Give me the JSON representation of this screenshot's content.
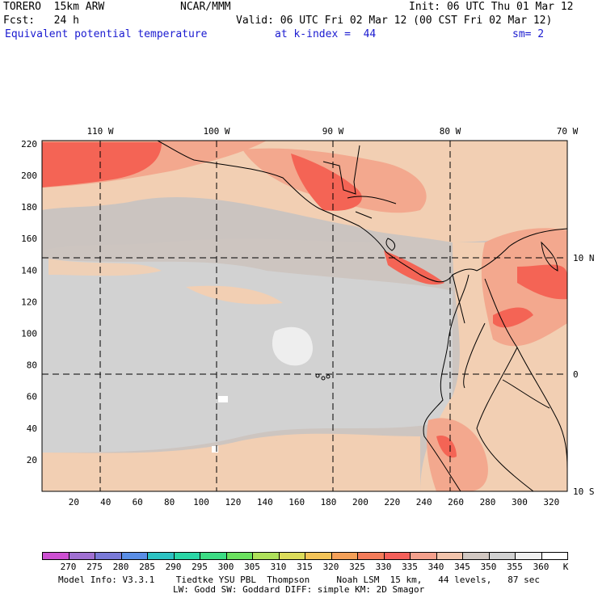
{
  "header": {
    "model": "TORERO  15km ARW",
    "center": "NCAR/MMM",
    "init": "Init: 06 UTC Thu 01 Mar 12",
    "fcst": "Fcst:   24 h",
    "valid": "Valid: 06 UTC Fri 02 Mar 12 (00 CST Fri 02 Mar 12)",
    "field": "Equivalent potential temperature",
    "level": "at k-index =  44",
    "smooth": "sm= 2"
  },
  "map": {
    "lon_labels": [
      {
        "text": "110 W",
        "lon": -110
      },
      {
        "text": "100 W",
        "lon": -100
      },
      {
        "text": "90 W",
        "lon": -90
      },
      {
        "text": "80 W",
        "lon": -80
      },
      {
        "text": "70 W",
        "lon": -70
      }
    ],
    "lat_labels": [
      {
        "text": "10 N",
        "lat": 10
      },
      {
        "text": "0",
        "lat": 0
      },
      {
        "text": "10 S",
        "lat": -10
      }
    ],
    "x_ticks": [
      "20",
      "40",
      "60",
      "80",
      "100",
      "120",
      "140",
      "160",
      "180",
      "200",
      "220",
      "240",
      "260",
      "280",
      "300",
      "320"
    ],
    "y_ticks": [
      "20",
      "40",
      "60",
      "80",
      "100",
      "120",
      "140",
      "160",
      "180",
      "200",
      "220"
    ],
    "colors": {
      "bg_cool": "#cdc5c0",
      "grey": "#d2d2d2",
      "peach": "#f2cfb3",
      "salmon": "#f3a88e",
      "red": "#f46455",
      "light": "#eeeeee",
      "white": "#ffffff"
    }
  },
  "legend": {
    "values": [
      "270",
      "275",
      "280",
      "285",
      "290",
      "295",
      "300",
      "305",
      "310",
      "315",
      "320",
      "325",
      "330",
      "335",
      "340",
      "345",
      "350",
      "355",
      "360"
    ],
    "unit": "K",
    "colors": [
      "#cd50d2",
      "#a070d2",
      "#7a7ad8",
      "#5a8ee6",
      "#2cc2c2",
      "#2ad6a6",
      "#3cdc84",
      "#6ae05e",
      "#aee05a",
      "#dcdc5a",
      "#f4c458",
      "#f4a058",
      "#f47c5a",
      "#f4605a",
      "#f4a08c",
      "#f2c4ac",
      "#d2c8c2",
      "#d2d2d2",
      "#f0f0f0",
      "#ffffff"
    ]
  },
  "footer": {
    "line1": "Model Info: V3.3.1    Tiedtke YSU PBL  Thompson     Noah LSM  15 km,   44 levels,   87 sec",
    "line2": "LW: Godd SW: Goddard DIFF: simple KM: 2D Smagor"
  }
}
